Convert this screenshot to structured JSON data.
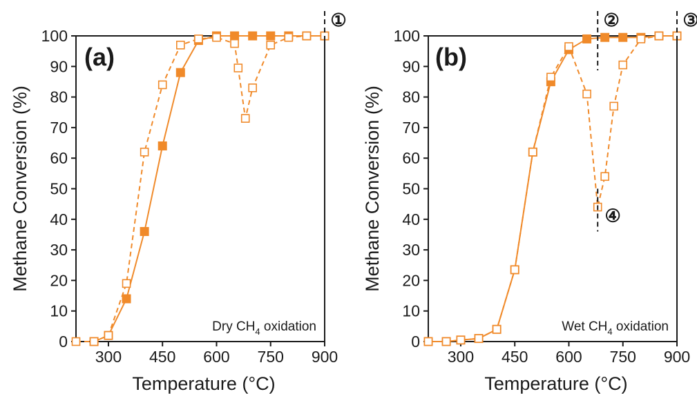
{
  "colors": {
    "series": "#f08a2a",
    "axis": "#1a1a1a"
  },
  "chart_data": [
    {
      "type": "line",
      "panel_label": "(a)",
      "xlabel": "Temperature (°C)",
      "ylabel": "Methane Conversion (%)",
      "xlim": [
        210,
        900
      ],
      "ylim": [
        0,
        100
      ],
      "xticks": [
        300,
        450,
        600,
        750,
        900
      ],
      "yticks": [
        0,
        10,
        20,
        30,
        40,
        50,
        60,
        70,
        80,
        90,
        100
      ],
      "grid": false,
      "annotation": {
        "prefix": "Dry CH",
        "sub": "4",
        "suffix": " oxidation"
      },
      "markers": [
        {
          "label": "①",
          "x": 900
        }
      ],
      "series": [
        {
          "style": "solid-filled-square",
          "x": [
            260,
            300,
            350,
            400,
            450,
            500,
            550,
            600,
            650,
            700,
            750,
            800,
            850,
            900
          ],
          "y": [
            0,
            2,
            14,
            36,
            64,
            88,
            98.5,
            100,
            100,
            100,
            100,
            100,
            100,
            100
          ]
        },
        {
          "style": "dashed-open-square",
          "x": [
            210,
            260,
            300,
            350,
            400,
            450,
            500,
            550,
            600,
            650,
            660,
            680,
            700,
            750,
            800,
            850,
            900
          ],
          "y": [
            0,
            0,
            2,
            19,
            62,
            84,
            97,
            99,
            99.5,
            97.5,
            89.5,
            73,
            83,
            97,
            99.5,
            100,
            100
          ]
        }
      ]
    },
    {
      "type": "line",
      "panel_label": "(b)",
      "xlabel": "Temperature (°C)",
      "ylabel": "Methane Conversion (%)",
      "xlim": [
        210,
        900
      ],
      "ylim": [
        0,
        100
      ],
      "xticks": [
        300,
        450,
        600,
        750,
        900
      ],
      "yticks": [
        0,
        10,
        20,
        30,
        40,
        50,
        60,
        70,
        80,
        90,
        100
      ],
      "grid": false,
      "annotation": {
        "prefix": "Wet CH",
        "sub": "4",
        "suffix": " oxidation"
      },
      "markers": [
        {
          "label": "②",
          "x": 680
        },
        {
          "label": "③",
          "x": 900
        },
        {
          "label": "④",
          "x": 680
        }
      ],
      "series": [
        {
          "style": "solid-filled-square",
          "x": [
            210,
            260,
            300,
            350,
            400,
            450,
            500,
            550,
            600,
            650,
            700,
            750,
            800,
            850,
            900
          ],
          "y": [
            0,
            0,
            0.5,
            1,
            4,
            23.5,
            62,
            85,
            95.5,
            99,
            99.5,
            99.5,
            99.5,
            100,
            100
          ]
        },
        {
          "style": "dashed-open-square",
          "x": [
            210,
            260,
            300,
            350,
            400,
            450,
            500,
            550,
            600,
            650,
            680,
            700,
            725,
            750,
            800,
            850,
            900
          ],
          "y": [
            0,
            0,
            0.5,
            1,
            4,
            23.5,
            62,
            86.5,
            96.5,
            81,
            44,
            54,
            77,
            90.5,
            99,
            100,
            100
          ]
        }
      ]
    }
  ]
}
